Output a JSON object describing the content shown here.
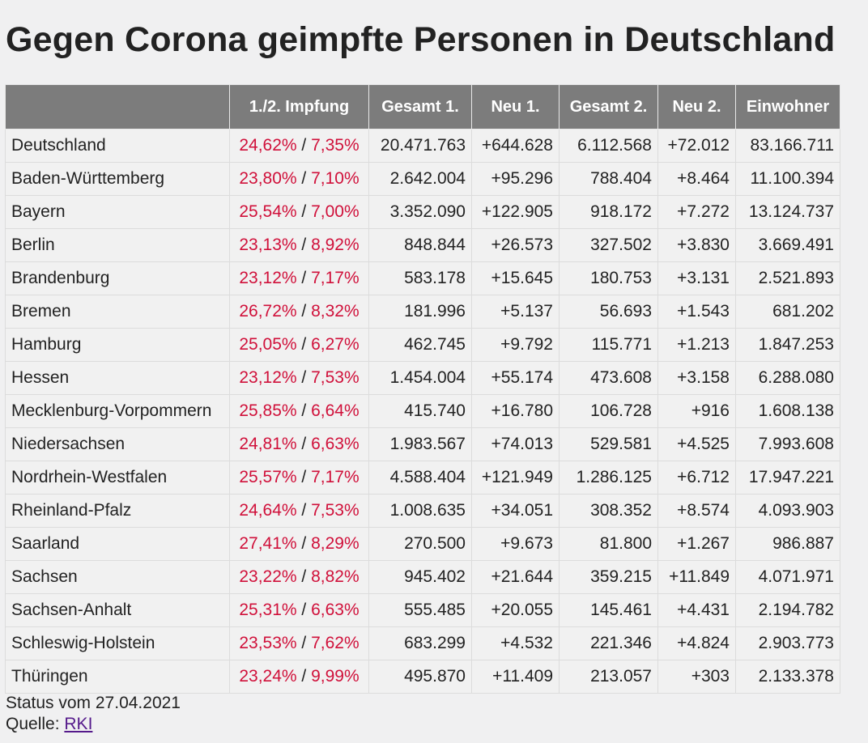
{
  "page": {
    "title": "Gegen Corona geimpfte Personen in Deutschland"
  },
  "table": {
    "headers": [
      "",
      "1./2. Impfung",
      "Gesamt 1.",
      "Neu 1.",
      "Gesamt 2.",
      "Neu 2.",
      "Einwohner"
    ],
    "rows": [
      {
        "name": "Deutschland",
        "pct1": "24,62%",
        "pct2": "7,35%",
        "gesamt1": "20.471.763",
        "neu1": "+644.628",
        "gesamt2": "6.112.568",
        "neu2": "+72.012",
        "einwohner": "83.166.711"
      },
      {
        "name": "Baden-Württemberg",
        "pct1": "23,80%",
        "pct2": "7,10%",
        "gesamt1": "2.642.004",
        "neu1": "+95.296",
        "gesamt2": "788.404",
        "neu2": "+8.464",
        "einwohner": "11.100.394"
      },
      {
        "name": "Bayern",
        "pct1": "25,54%",
        "pct2": "7,00%",
        "gesamt1": "3.352.090",
        "neu1": "+122.905",
        "gesamt2": "918.172",
        "neu2": "+7.272",
        "einwohner": "13.124.737"
      },
      {
        "name": "Berlin",
        "pct1": "23,13%",
        "pct2": "8,92%",
        "gesamt1": "848.844",
        "neu1": "+26.573",
        "gesamt2": "327.502",
        "neu2": "+3.830",
        "einwohner": "3.669.491"
      },
      {
        "name": "Brandenburg",
        "pct1": "23,12%",
        "pct2": "7,17%",
        "gesamt1": "583.178",
        "neu1": "+15.645",
        "gesamt2": "180.753",
        "neu2": "+3.131",
        "einwohner": "2.521.893"
      },
      {
        "name": "Bremen",
        "pct1": "26,72%",
        "pct2": "8,32%",
        "gesamt1": "181.996",
        "neu1": "+5.137",
        "gesamt2": "56.693",
        "neu2": "+1.543",
        "einwohner": "681.202"
      },
      {
        "name": "Hamburg",
        "pct1": "25,05%",
        "pct2": "6,27%",
        "gesamt1": "462.745",
        "neu1": "+9.792",
        "gesamt2": "115.771",
        "neu2": "+1.213",
        "einwohner": "1.847.253"
      },
      {
        "name": "Hessen",
        "pct1": "23,12%",
        "pct2": "7,53%",
        "gesamt1": "1.454.004",
        "neu1": "+55.174",
        "gesamt2": "473.608",
        "neu2": "+3.158",
        "einwohner": "6.288.080"
      },
      {
        "name": "Mecklenburg-Vorpommern",
        "pct1": "25,85%",
        "pct2": "6,64%",
        "gesamt1": "415.740",
        "neu1": "+16.780",
        "gesamt2": "106.728",
        "neu2": "+916",
        "einwohner": "1.608.138"
      },
      {
        "name": "Niedersachsen",
        "pct1": "24,81%",
        "pct2": "6,63%",
        "gesamt1": "1.983.567",
        "neu1": "+74.013",
        "gesamt2": "529.581",
        "neu2": "+4.525",
        "einwohner": "7.993.608"
      },
      {
        "name": "Nordrhein-Westfalen",
        "pct1": "25,57%",
        "pct2": "7,17%",
        "gesamt1": "4.588.404",
        "neu1": "+121.949",
        "gesamt2": "1.286.125",
        "neu2": "+6.712",
        "einwohner": "17.947.221"
      },
      {
        "name": "Rheinland-Pfalz",
        "pct1": "24,64%",
        "pct2": "7,53%",
        "gesamt1": "1.008.635",
        "neu1": "+34.051",
        "gesamt2": "308.352",
        "neu2": "+8.574",
        "einwohner": "4.093.903"
      },
      {
        "name": "Saarland",
        "pct1": "27,41%",
        "pct2": "8,29%",
        "gesamt1": "270.500",
        "neu1": "+9.673",
        "gesamt2": "81.800",
        "neu2": "+1.267",
        "einwohner": "986.887"
      },
      {
        "name": "Sachsen",
        "pct1": "23,22%",
        "pct2": "8,82%",
        "gesamt1": "945.402",
        "neu1": "+21.644",
        "gesamt2": "359.215",
        "neu2": "+11.849",
        "einwohner": "4.071.971"
      },
      {
        "name": "Sachsen-Anhalt",
        "pct1": "25,31%",
        "pct2": "6,63%",
        "gesamt1": "555.485",
        "neu1": "+20.055",
        "gesamt2": "145.461",
        "neu2": "+4.431",
        "einwohner": "2.194.782"
      },
      {
        "name": "Schleswig-Holstein",
        "pct1": "23,53%",
        "pct2": "7,62%",
        "gesamt1": "683.299",
        "neu1": "+4.532",
        "gesamt2": "221.346",
        "neu2": "+4.824",
        "einwohner": "2.903.773"
      },
      {
        "name": "Thüringen",
        "pct1": "23,24%",
        "pct2": "9,99%",
        "gesamt1": "495.870",
        "neu1": "+11.409",
        "gesamt2": "213.057",
        "neu2": "+303",
        "einwohner": "2.133.378"
      }
    ]
  },
  "footer": {
    "status": "Status vom 27.04.2021",
    "source_label": "Quelle:",
    "source_link": "RKI"
  },
  "colors": {
    "background": "#f0f0f1",
    "header_bg": "#7c7c7c",
    "header_text": "#ffffff",
    "percent_red": "#d0103a",
    "link": "#551a8b"
  }
}
